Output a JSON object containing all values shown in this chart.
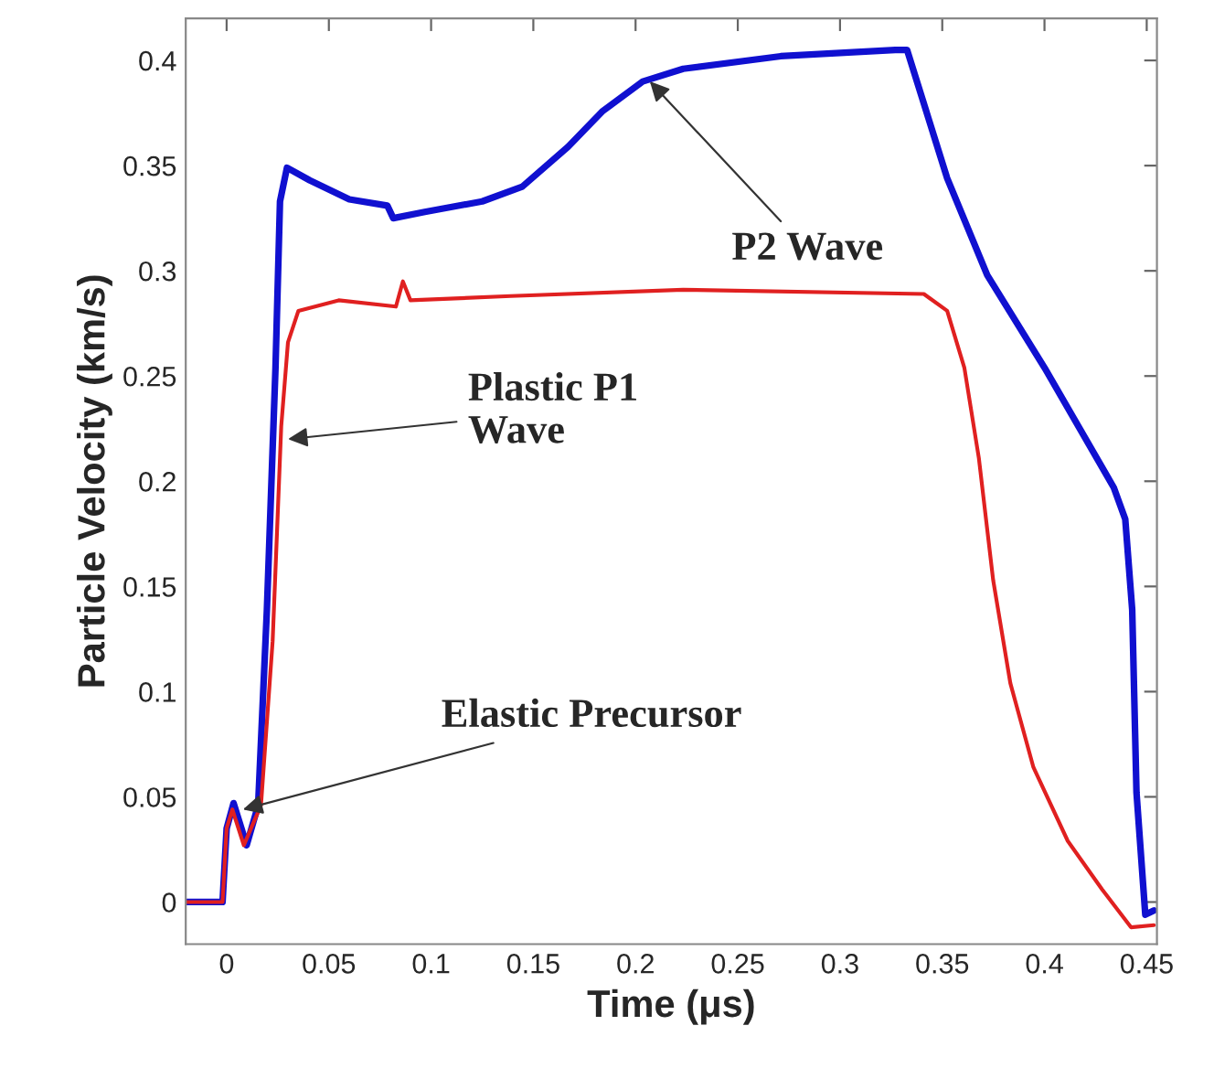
{
  "chart_data": {
    "type": "line",
    "xlabel": "Time (μs)",
    "ylabel": "Particle Velocity (km/s)",
    "xlim": [
      -0.02,
      0.455
    ],
    "ylim": [
      -0.02,
      0.42
    ],
    "xticks": [
      0,
      0.05,
      0.1,
      0.15,
      0.2,
      0.25,
      0.3,
      0.35,
      0.4,
      0.45
    ],
    "yticks": [
      0,
      0.05,
      0.1,
      0.15,
      0.2,
      0.25,
      0.3,
      0.35,
      0.4
    ],
    "grid": false,
    "legend": false,
    "marker": "none",
    "line_style": "solid",
    "series": [
      {
        "color": "#1010d0",
        "x": [
          -0.02,
          -0.002,
          0.0,
          0.0034,
          0.0098,
          0.0154,
          0.0197,
          0.0239,
          0.0261,
          0.0295,
          0.0407,
          0.06,
          0.0786,
          0.0815,
          0.0969,
          0.125,
          0.1446,
          0.167,
          0.184,
          0.2035,
          0.2233,
          0.271,
          0.327,
          0.3328,
          0.3524,
          0.372,
          0.4,
          0.4339,
          0.4395,
          0.4429,
          0.445,
          0.4493,
          0.4535
        ],
        "values": [
          0,
          0,
          0.035,
          0.047,
          0.027,
          0.046,
          0.139,
          0.254,
          0.333,
          0.349,
          0.343,
          0.334,
          0.331,
          0.325,
          0.328,
          0.333,
          0.34,
          0.359,
          0.376,
          0.39,
          0.396,
          0.402,
          0.405,
          0.405,
          0.344,
          0.298,
          0.254,
          0.197,
          0.182,
          0.139,
          0.052,
          -0.006,
          -0.004
        ]
      },
      {
        "color": "#e02020",
        "x": [
          -0.02,
          -0.002,
          0.0,
          0.0028,
          0.0084,
          0.0168,
          0.0225,
          0.0267,
          0.03,
          0.0351,
          0.0548,
          0.0828,
          0.0862,
          0.0899,
          0.139,
          0.2233,
          0.341,
          0.3524,
          0.3608,
          0.3679,
          0.3749,
          0.3833,
          0.3946,
          0.4114,
          0.4282,
          0.4423,
          0.4535
        ],
        "values": [
          0,
          0,
          0.035,
          0.044,
          0.027,
          0.046,
          0.124,
          0.226,
          0.266,
          0.281,
          0.286,
          0.283,
          0.295,
          0.286,
          0.288,
          0.291,
          0.289,
          0.281,
          0.254,
          0.211,
          0.153,
          0.104,
          0.064,
          0.029,
          0.006,
          -0.012,
          -0.011
        ]
      }
    ],
    "annotations": [
      {
        "text": "P2 Wave",
        "x": 0.207,
        "y": 0.39
      },
      {
        "text": "Plastic P1\nWave",
        "x": 0.03,
        "y": 0.22
      },
      {
        "text": "Elastic Precursor",
        "x": 0.008,
        "y": 0.044
      }
    ]
  }
}
